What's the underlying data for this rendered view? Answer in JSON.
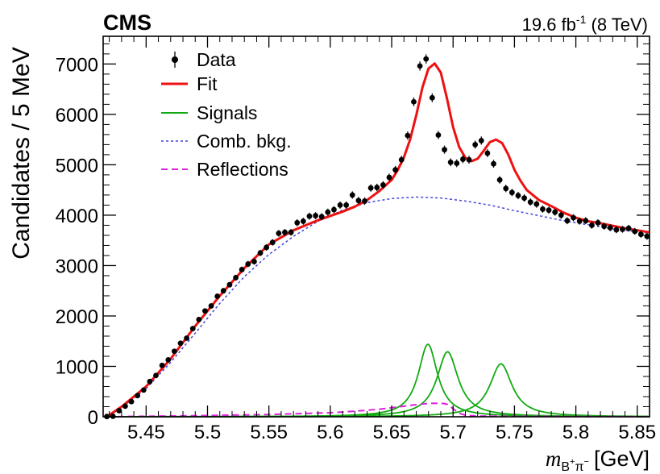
{
  "header": {
    "experiment": "CMS",
    "lumi_value": "19.6 fb",
    "lumi_exp": "-1",
    "energy": " (8 TeV)"
  },
  "chart_data": {
    "type": "scatter",
    "title": "",
    "ylabel": "Candidates / 5 MeV",
    "xlabel": {
      "var": "m",
      "sub_main": "B",
      "sub_sup1": "+",
      "sub_pi": "π",
      "sub_sup2": "−",
      "unit": "[GeV]"
    },
    "xlim": [
      5.415,
      5.86
    ],
    "ylim": [
      0,
      7550
    ],
    "x_ticks": [
      5.45,
      5.5,
      5.55,
      5.6,
      5.65,
      5.7,
      5.75,
      5.8,
      5.85
    ],
    "x_tick_labels": [
      "5.45",
      "5.5",
      "5.55",
      "5.6",
      "5.65",
      "5.7",
      "5.75",
      "5.8",
      "5.85"
    ],
    "y_ticks": [
      0,
      1000,
      2000,
      3000,
      4000,
      5000,
      6000,
      7000
    ],
    "y_tick_labels": [
      "0",
      "1000",
      "2000",
      "3000",
      "4000",
      "5000",
      "6000",
      "7000"
    ],
    "legend": {
      "position": "top-left",
      "entries": [
        {
          "label": "Data",
          "style": "marker",
          "color": "#000000"
        },
        {
          "label": "Fit",
          "style": "solid",
          "color": "#ee1111"
        },
        {
          "label": "Signals",
          "style": "solid",
          "color": "#11aa11"
        },
        {
          "label": "Comb. bkg.",
          "style": "dotted",
          "color": "#4444dd"
        },
        {
          "label": "Reflections",
          "style": "dashed",
          "color": "#dd22dd"
        }
      ]
    },
    "data_points": {
      "x": [
        5.418,
        5.423,
        5.428,
        5.433,
        5.438,
        5.443,
        5.448,
        5.453,
        5.458,
        5.463,
        5.468,
        5.473,
        5.478,
        5.483,
        5.488,
        5.493,
        5.498,
        5.503,
        5.508,
        5.513,
        5.518,
        5.523,
        5.528,
        5.533,
        5.538,
        5.543,
        5.548,
        5.553,
        5.558,
        5.563,
        5.568,
        5.573,
        5.578,
        5.583,
        5.588,
        5.593,
        5.598,
        5.603,
        5.608,
        5.613,
        5.618,
        5.623,
        5.628,
        5.633,
        5.638,
        5.643,
        5.648,
        5.653,
        5.658,
        5.663,
        5.668,
        5.673,
        5.678,
        5.683,
        5.688,
        5.693,
        5.698,
        5.703,
        5.708,
        5.713,
        5.718,
        5.723,
        5.728,
        5.733,
        5.738,
        5.743,
        5.748,
        5.753,
        5.758,
        5.763,
        5.768,
        5.773,
        5.778,
        5.783,
        5.788,
        5.793,
        5.798,
        5.803,
        5.808,
        5.813,
        5.818,
        5.823,
        5.828,
        5.833,
        5.838,
        5.843,
        5.848,
        5.853,
        5.858
      ],
      "y": [
        5,
        10,
        120,
        210,
        300,
        420,
        530,
        700,
        820,
        1020,
        1130,
        1300,
        1460,
        1560,
        1750,
        1930,
        2100,
        2200,
        2390,
        2500,
        2620,
        2760,
        2920,
        3030,
        3080,
        3250,
        3360,
        3460,
        3640,
        3660,
        3660,
        3850,
        3880,
        3980,
        3990,
        3970,
        4060,
        4110,
        4200,
        4200,
        4400,
        4290,
        4280,
        4540,
        4550,
        4600,
        4750,
        4900,
        5100,
        5580,
        6250,
        6960,
        7100,
        6330,
        5590,
        5300,
        5050,
        5030,
        5110,
        5100,
        5400,
        5480,
        5230,
        5020,
        4700,
        4530,
        4450,
        4390,
        4340,
        4260,
        4220,
        4120,
        4100,
        4060,
        4000,
        3890,
        3950,
        3880,
        3890,
        3800,
        3850,
        3780,
        3750,
        3710,
        3720,
        3740,
        3680,
        3620,
        3580
      ]
    },
    "curves": {
      "fit": {
        "x": [
          5.418,
          5.43,
          5.45,
          5.47,
          5.49,
          5.51,
          5.53,
          5.55,
          5.57,
          5.59,
          5.61,
          5.62,
          5.63,
          5.64,
          5.65,
          5.655,
          5.66,
          5.665,
          5.67,
          5.675,
          5.68,
          5.685,
          5.69,
          5.695,
          5.7,
          5.705,
          5.71,
          5.715,
          5.72,
          5.725,
          5.73,
          5.735,
          5.74,
          5.745,
          5.75,
          5.755,
          5.76,
          5.77,
          5.78,
          5.79,
          5.8,
          5.81,
          5.82,
          5.83,
          5.84,
          5.85,
          5.86
        ],
        "y": [
          0,
          200,
          600,
          1150,
          1800,
          2400,
          2950,
          3420,
          3700,
          3900,
          4070,
          4170,
          4300,
          4480,
          4700,
          4900,
          5150,
          5500,
          5980,
          6530,
          6910,
          7010,
          6830,
          6320,
          5750,
          5350,
          5140,
          5070,
          5120,
          5280,
          5450,
          5500,
          5430,
          5200,
          4900,
          4680,
          4500,
          4300,
          4180,
          4050,
          3950,
          3880,
          3840,
          3790,
          3740,
          3700,
          3660
        ]
      },
      "comb_bkg": {
        "x": [
          5.418,
          5.43,
          5.45,
          5.47,
          5.49,
          5.51,
          5.53,
          5.55,
          5.57,
          5.59,
          5.61,
          5.63,
          5.65,
          5.67,
          5.69,
          5.71,
          5.73,
          5.75,
          5.77,
          5.79,
          5.81,
          5.83,
          5.85,
          5.86
        ],
        "y": [
          0,
          180,
          560,
          1080,
          1660,
          2250,
          2780,
          3220,
          3580,
          3880,
          4100,
          4250,
          4330,
          4360,
          4340,
          4280,
          4200,
          4090,
          3990,
          3890,
          3810,
          3730,
          3670,
          3640
        ]
      },
      "reflections": {
        "x": [
          5.418,
          5.45,
          5.5,
          5.55,
          5.6,
          5.62,
          5.64,
          5.65,
          5.66,
          5.67,
          5.68,
          5.69,
          5.695,
          5.7,
          5.705,
          5.71,
          5.72,
          5.75,
          5.8,
          5.86
        ],
        "y": [
          0,
          10,
          25,
          45,
          80,
          110,
          150,
          180,
          210,
          240,
          265,
          270,
          250,
          160,
          70,
          30,
          15,
          8,
          4,
          2
        ]
      },
      "signals": [
        {
          "peak_x": 5.6795,
          "peak_y": 1440,
          "half_width": 0.0095
        },
        {
          "peak_x": 5.6955,
          "peak_y": 1290,
          "half_width": 0.0105
        },
        {
          "peak_x": 5.739,
          "peak_y": 1050,
          "half_width": 0.011
        }
      ]
    },
    "grid": false
  }
}
